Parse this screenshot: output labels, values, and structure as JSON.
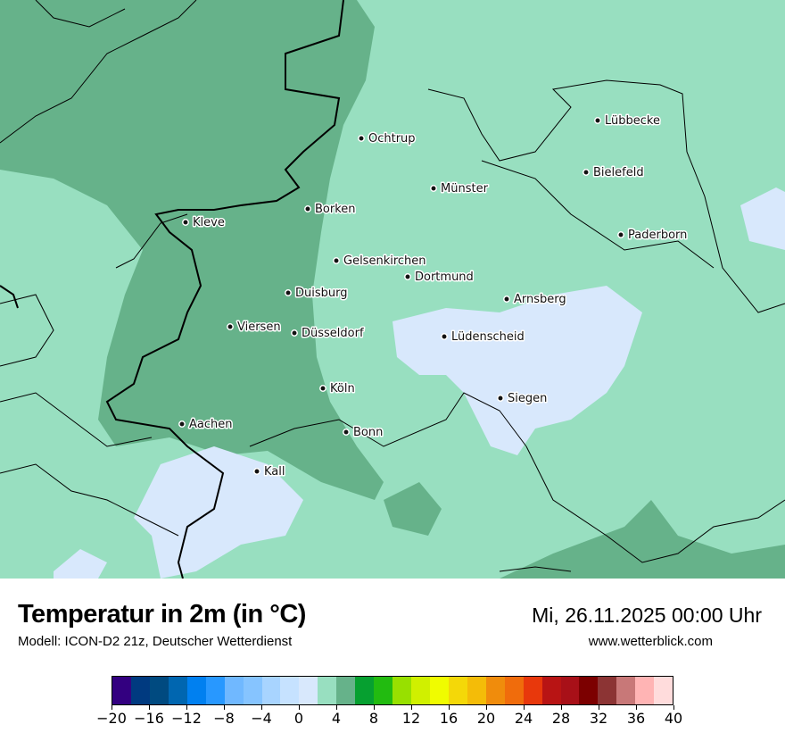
{
  "title": "Temperatur in 2m (in °C)",
  "subtitle": "Modell: ICON-D2 21z, Deutscher Wetterdienst",
  "datetime": "Mi, 26.11.2025 00:00 Uhr",
  "website": "www.wetterblick.com",
  "map_colors": {
    "base": "#98dfc0",
    "warmer": "#66b28a",
    "colder": "#d8e8fc",
    "border": "#000000"
  },
  "cities": [
    {
      "name": "Ochtrup"
    },
    {
      "name": "Lübbecke"
    },
    {
      "name": "Bielefeld"
    },
    {
      "name": "Münster"
    },
    {
      "name": "Borken"
    },
    {
      "name": "Kleve"
    },
    {
      "name": "Paderborn"
    },
    {
      "name": "Gelsenkirchen"
    },
    {
      "name": "Dortmund"
    },
    {
      "name": "Duisburg"
    },
    {
      "name": "Arnsberg"
    },
    {
      "name": "Viersen"
    },
    {
      "name": "Düsseldorf"
    },
    {
      "name": "Lüdenscheid"
    },
    {
      "name": "Köln"
    },
    {
      "name": "Siegen"
    },
    {
      "name": "Aachen"
    },
    {
      "name": "Bonn"
    },
    {
      "name": "Kall"
    }
  ],
  "legend": {
    "min": -20,
    "max": 40,
    "step": 2,
    "colors": [
      "#330080",
      "#003a80",
      "#004a80",
      "#0066b0",
      "#0080f0",
      "#2898ff",
      "#70b8ff",
      "#86c4ff",
      "#a8d4ff",
      "#c6e2ff",
      "#d8e8fc",
      "#98dfc0",
      "#66b28a",
      "#06a030",
      "#22bb10",
      "#98e000",
      "#d0f000",
      "#f0fc00",
      "#f4d808",
      "#f4bc08",
      "#f08c0c",
      "#f06c0c",
      "#e8380c",
      "#b81414",
      "#a81018",
      "#7c0000",
      "#8c3434",
      "#c87878",
      "#ffb4b4",
      "#ffdcdc"
    ],
    "tick_labels": [
      "−20",
      "−16",
      "−12",
      "−8",
      "−4",
      "0",
      "4",
      "8",
      "12",
      "16",
      "20",
      "24",
      "28",
      "32",
      "36",
      "40"
    ]
  }
}
